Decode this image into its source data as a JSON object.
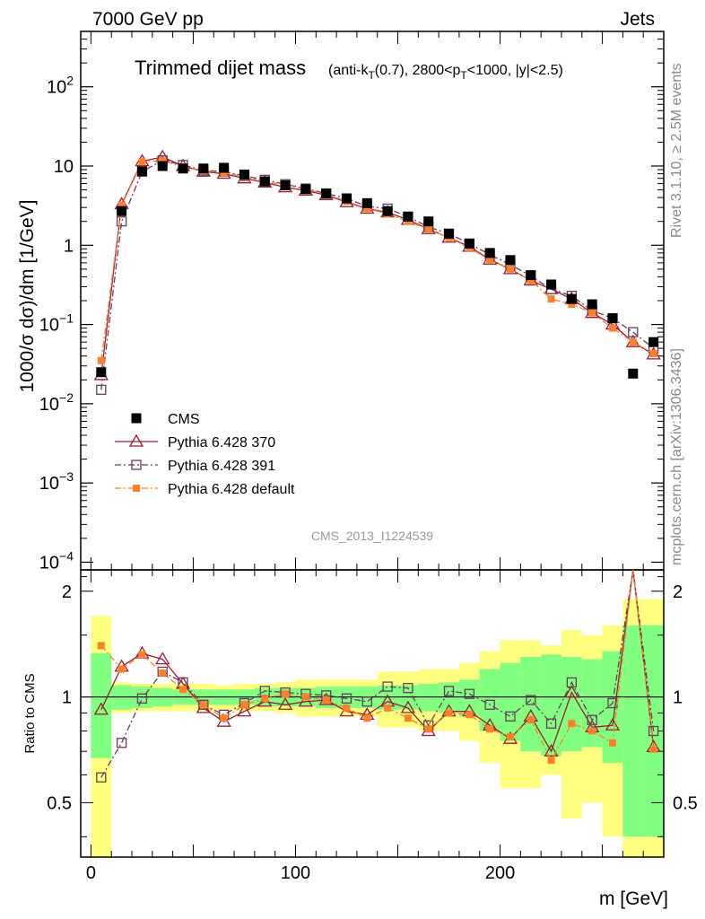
{
  "header": {
    "left": "7000 GeV pp",
    "right": "Jets"
  },
  "side_labels": {
    "rivet": "Rivet 3.1.10, ≥ 2.5M events",
    "mcplots": "mcplots.cern.ch [arXiv:1306.3436]"
  },
  "chart_data": {
    "type": "line",
    "title": "Trimmed dijet mass",
    "subtitle": "(anti-k_T(0.7), 2800<p_T<1000, |y|<2.5)",
    "analysis_id": "CMS_2013_I1224539",
    "xlabel": "m [GeV]",
    "ylabel": "1000/σ dσ)/dm [1/GeV]",
    "ratio_ylabel": "Ratio to CMS",
    "xlim": [
      -5,
      280
    ],
    "ylim": [
      8e-05,
      500
    ],
    "yscale": "log",
    "ratio_ylim": [
      0.35,
      2.3
    ],
    "x_ticks": [
      "0",
      "100",
      "200"
    ],
    "y_ticks": [
      "10^-4",
      "10^-3",
      "10^-2",
      "10^-1",
      "1",
      "10",
      "10^2"
    ],
    "ratio_ticks": [
      "0.5",
      "1",
      "2"
    ],
    "legend_position": "lower-left",
    "x": [
      5,
      15,
      25,
      35,
      45,
      55,
      65,
      75,
      85,
      95,
      105,
      115,
      125,
      135,
      145,
      155,
      165,
      175,
      185,
      195,
      205,
      215,
      225,
      235,
      245,
      255,
      265,
      275
    ],
    "bin_edges": [
      0,
      10,
      20,
      30,
      40,
      50,
      60,
      70,
      80,
      90,
      100,
      110,
      120,
      130,
      140,
      150,
      160,
      170,
      180,
      190,
      200,
      210,
      220,
      230,
      240,
      250,
      260,
      270,
      280
    ],
    "series": [
      {
        "name": "CMS",
        "color": "#000000",
        "marker": "filled-square",
        "values": [
          0.025,
          2.7,
          8.6,
          10.0,
          9.3,
          9.3,
          9.5,
          7.8,
          6.4,
          5.7,
          5.1,
          4.5,
          3.9,
          3.4,
          2.7,
          2.3,
          2.0,
          1.4,
          1.05,
          0.8,
          0.65,
          0.42,
          0.32,
          0.21,
          0.18,
          0.12,
          0.024,
          0.06
        ]
      },
      {
        "name": "Pythia 6.428 370",
        "color": "#9b1b30",
        "marker": "open-triangle",
        "line": "solid",
        "values": [
          0.023,
          3.3,
          11.5,
          13.0,
          10.0,
          8.5,
          8.0,
          7.0,
          6.2,
          5.4,
          4.9,
          4.3,
          3.5,
          2.9,
          2.6,
          2.1,
          1.6,
          1.25,
          0.96,
          0.66,
          0.5,
          0.36,
          0.28,
          0.21,
          0.14,
          0.1,
          0.06,
          0.042
        ]
      },
      {
        "name": "Pythia 6.428 391",
        "color": "#6b3a5b",
        "marker": "open-square",
        "line": "dash-dot",
        "values": [
          0.015,
          2.0,
          8.5,
          11.8,
          10.3,
          8.8,
          8.5,
          7.5,
          6.7,
          5.9,
          5.2,
          4.5,
          3.9,
          3.1,
          2.9,
          2.3,
          1.7,
          1.4,
          1.05,
          0.76,
          0.57,
          0.41,
          0.28,
          0.23,
          0.15,
          0.12,
          0.08,
          0.05
        ]
      },
      {
        "name": "Pythia 6.428 default",
        "color": "#ff7f2a",
        "marker": "filled-square-small",
        "line": "dash-dot",
        "values": [
          0.035,
          3.2,
          11.3,
          11.7,
          9.7,
          8.8,
          8.2,
          7.4,
          6.3,
          5.8,
          5.1,
          4.4,
          3.6,
          2.9,
          2.5,
          2.0,
          1.6,
          1.25,
          0.93,
          0.65,
          0.5,
          0.36,
          0.21,
          0.18,
          0.14,
          0.09,
          0.06,
          0.043
        ]
      }
    ],
    "ratios": [
      {
        "name": "Pythia 6.428 370",
        "values": [
          0.92,
          1.22,
          1.33,
          1.28,
          1.09,
          0.93,
          0.85,
          0.91,
          0.97,
          0.95,
          0.97,
          0.98,
          0.91,
          0.89,
          0.97,
          0.93,
          0.8,
          0.91,
          0.91,
          0.83,
          0.76,
          0.88,
          0.7,
          1.03,
          0.82,
          0.83,
          2.5,
          0.72
        ]
      },
      {
        "name": "Pythia 6.428 391",
        "values": [
          0.59,
          0.74,
          0.99,
          1.18,
          1.1,
          0.95,
          0.89,
          0.96,
          1.04,
          1.03,
          1.02,
          1.01,
          0.99,
          0.97,
          1.07,
          1.06,
          0.83,
          1.04,
          1.02,
          0.95,
          0.88,
          0.98,
          0.84,
          1.1,
          0.86,
          0.96,
          2.55,
          0.8
        ]
      },
      {
        "name": "Pythia 6.428 default",
        "values": [
          1.4,
          1.2,
          1.32,
          1.17,
          1.05,
          0.95,
          0.87,
          0.95,
          0.99,
          1.02,
          1.0,
          0.98,
          0.93,
          0.87,
          0.93,
          0.87,
          0.81,
          0.9,
          0.89,
          0.81,
          0.77,
          0.86,
          0.66,
          0.84,
          0.8,
          0.74,
          2.5,
          0.71
        ]
      }
    ],
    "uncertainty_bands": {
      "inner_color": "#80ff80",
      "outer_color": "#ffff80",
      "inner_half_width": [
        0.33,
        0.08,
        0.07,
        0.06,
        0.05,
        0.05,
        0.05,
        0.05,
        0.06,
        0.06,
        0.06,
        0.07,
        0.07,
        0.07,
        0.08,
        0.08,
        0.09,
        0.1,
        0.12,
        0.2,
        0.25,
        0.3,
        0.32,
        0.3,
        0.28,
        0.35,
        0.6,
        0.6
      ],
      "outer_half_width": [
        0.7,
        0.1,
        0.09,
        0.09,
        0.09,
        0.09,
        0.08,
        0.09,
        0.09,
        0.1,
        0.12,
        0.12,
        0.12,
        0.12,
        0.18,
        0.18,
        0.2,
        0.2,
        0.25,
        0.35,
        0.45,
        0.45,
        0.4,
        0.55,
        0.5,
        0.6,
        0.9,
        0.9
      ]
    }
  }
}
